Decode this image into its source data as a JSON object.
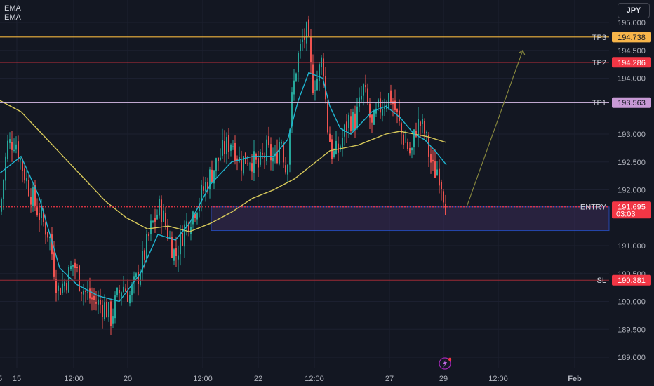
{
  "legend": {
    "line1": "EMA",
    "line2": "EMA"
  },
  "currency_button": {
    "label": "JPY"
  },
  "colors": {
    "background": "#131722",
    "candle_up": "#26a69a",
    "candle_down": "#ef5350",
    "ema_fast": "#1fb5d0",
    "ema_slow": "#d6c85a",
    "tp3_line": "#f0b43c",
    "tp3_tag": "#f7b54a",
    "tp2_line": "#f23645",
    "tp2_tag": "#f23645",
    "tp1_line": "#d9bde8",
    "tp1_tag": "#c89ad6",
    "entry_line": "#f23645",
    "entry_tag": "#f23645",
    "sl_line": "#9b2a35",
    "sl_tag": "#f23645",
    "projection_arrow": "#8a8a3e",
    "entry_box_border": "#2962ff"
  },
  "icons": {
    "lightning": "lightning-icon"
  },
  "chart_data": {
    "type": "candlestick",
    "y_axis": {
      "range": [
        188.85,
        195.3
      ],
      "ticks": [
        "195.000",
        "194.500",
        "194.000",
        "193.000",
        "192.500",
        "192.000",
        "191.000",
        "190.500",
        "190.000",
        "189.500",
        "189.000"
      ]
    },
    "x_axis": {
      "ticks": [
        "15",
        "12:00",
        "20",
        "12:00",
        "22",
        "12:00",
        "27",
        "29",
        "12:00",
        "Feb",
        "5"
      ]
    },
    "levels": [
      {
        "label": "TP3",
        "price": "194.738",
        "value": 194.738
      },
      {
        "label": "TP2",
        "price": "194.286",
        "value": 194.286
      },
      {
        "label": "TP1",
        "price": "193.563",
        "value": 193.563
      },
      {
        "label": "ENTRY",
        "price": "191.695",
        "value": 191.695,
        "countdown": "03:03"
      },
      {
        "label": "SL",
        "price": "190.381",
        "value": 190.381
      }
    ],
    "close_path": [
      [
        0,
        191.6
      ],
      [
        10,
        192.8
      ],
      [
        22,
        192.9
      ],
      [
        32,
        192.4
      ],
      [
        45,
        191.9
      ],
      [
        58,
        191.5
      ],
      [
        70,
        191.2
      ],
      [
        82,
        190.2
      ],
      [
        95,
        190.4
      ],
      [
        105,
        190.7
      ],
      [
        115,
        190.3
      ],
      [
        125,
        190.1
      ],
      [
        135,
        190.0
      ],
      [
        150,
        189.9
      ],
      [
        158,
        189.7
      ],
      [
        165,
        190.0
      ],
      [
        175,
        190.3
      ],
      [
        185,
        190.1
      ],
      [
        195,
        190.4
      ],
      [
        205,
        190.8
      ],
      [
        215,
        191.3
      ],
      [
        228,
        191.7
      ],
      [
        240,
        191.2
      ],
      [
        250,
        190.8
      ],
      [
        262,
        191.3
      ],
      [
        275,
        191.6
      ],
      [
        290,
        192.0
      ],
      [
        305,
        192.4
      ],
      [
        318,
        192.7
      ],
      [
        330,
        192.9
      ],
      [
        342,
        192.5
      ],
      [
        355,
        192.6
      ],
      [
        368,
        192.4
      ],
      [
        380,
        192.7
      ],
      [
        392,
        192.5
      ],
      [
        400,
        193.0
      ],
      [
        408,
        192.3
      ],
      [
        415,
        193.5
      ],
      [
        423,
        194.3
      ],
      [
        432,
        194.7
      ],
      [
        438,
        194.8
      ],
      [
        445,
        193.9
      ],
      [
        452,
        194.0
      ],
      [
        460,
        194.4
      ],
      [
        466,
        193.2
      ],
      [
        474,
        192.6
      ],
      [
        482,
        192.7
      ],
      [
        490,
        193.0
      ],
      [
        498,
        193.3
      ],
      [
        505,
        193.2
      ],
      [
        512,
        193.5
      ],
      [
        518,
        193.8
      ],
      [
        524,
        193.5
      ],
      [
        530,
        193.1
      ],
      [
        538,
        193.4
      ],
      [
        548,
        193.6
      ],
      [
        556,
        193.7
      ],
      [
        564,
        193.4
      ],
      [
        572,
        193.0
      ],
      [
        580,
        192.8
      ],
      [
        586,
        192.6
      ],
      [
        592,
        193.1
      ],
      [
        598,
        193.2
      ],
      [
        606,
        193.0
      ],
      [
        612,
        192.6
      ],
      [
        618,
        192.3
      ],
      [
        624,
        192.4
      ],
      [
        630,
        192.1
      ],
      [
        636,
        191.7
      ]
    ],
    "ema_fast": [
      [
        0,
        192.3
      ],
      [
        30,
        192.6
      ],
      [
        55,
        191.9
      ],
      [
        85,
        190.6
      ],
      [
        110,
        190.3
      ],
      [
        140,
        190.1
      ],
      [
        170,
        190.0
      ],
      [
        200,
        190.5
      ],
      [
        225,
        191.2
      ],
      [
        250,
        191.1
      ],
      [
        270,
        191.4
      ],
      [
        300,
        192.1
      ],
      [
        330,
        192.5
      ],
      [
        360,
        192.6
      ],
      [
        390,
        192.6
      ],
      [
        410,
        192.9
      ],
      [
        425,
        193.6
      ],
      [
        440,
        194.1
      ],
      [
        460,
        194.0
      ],
      [
        470,
        193.5
      ],
      [
        485,
        193.1
      ],
      [
        500,
        193.0
      ],
      [
        515,
        193.2
      ],
      [
        530,
        193.4
      ],
      [
        550,
        193.5
      ],
      [
        570,
        193.3
      ],
      [
        590,
        193.0
      ],
      [
        605,
        192.9
      ],
      [
        620,
        192.7
      ],
      [
        636,
        192.45
      ]
    ],
    "ema_slow": [
      [
        0,
        193.6
      ],
      [
        30,
        193.4
      ],
      [
        60,
        193.0
      ],
      [
        90,
        192.6
      ],
      [
        120,
        192.2
      ],
      [
        150,
        191.8
      ],
      [
        180,
        191.5
      ],
      [
        210,
        191.3
      ],
      [
        240,
        191.35
      ],
      [
        270,
        191.25
      ],
      [
        300,
        191.4
      ],
      [
        330,
        191.6
      ],
      [
        360,
        191.85
      ],
      [
        390,
        192.0
      ],
      [
        420,
        192.2
      ],
      [
        450,
        192.5
      ],
      [
        470,
        192.7
      ],
      [
        490,
        192.75
      ],
      [
        510,
        192.8
      ],
      [
        530,
        192.9
      ],
      [
        550,
        193.0
      ],
      [
        570,
        193.05
      ],
      [
        590,
        193.0
      ],
      [
        610,
        192.95
      ],
      [
        636,
        192.85
      ]
    ],
    "entry_zone": {
      "top": 191.695,
      "bottom": 191.27
    },
    "projection": {
      "from": 191.695,
      "to": 194.5
    }
  }
}
